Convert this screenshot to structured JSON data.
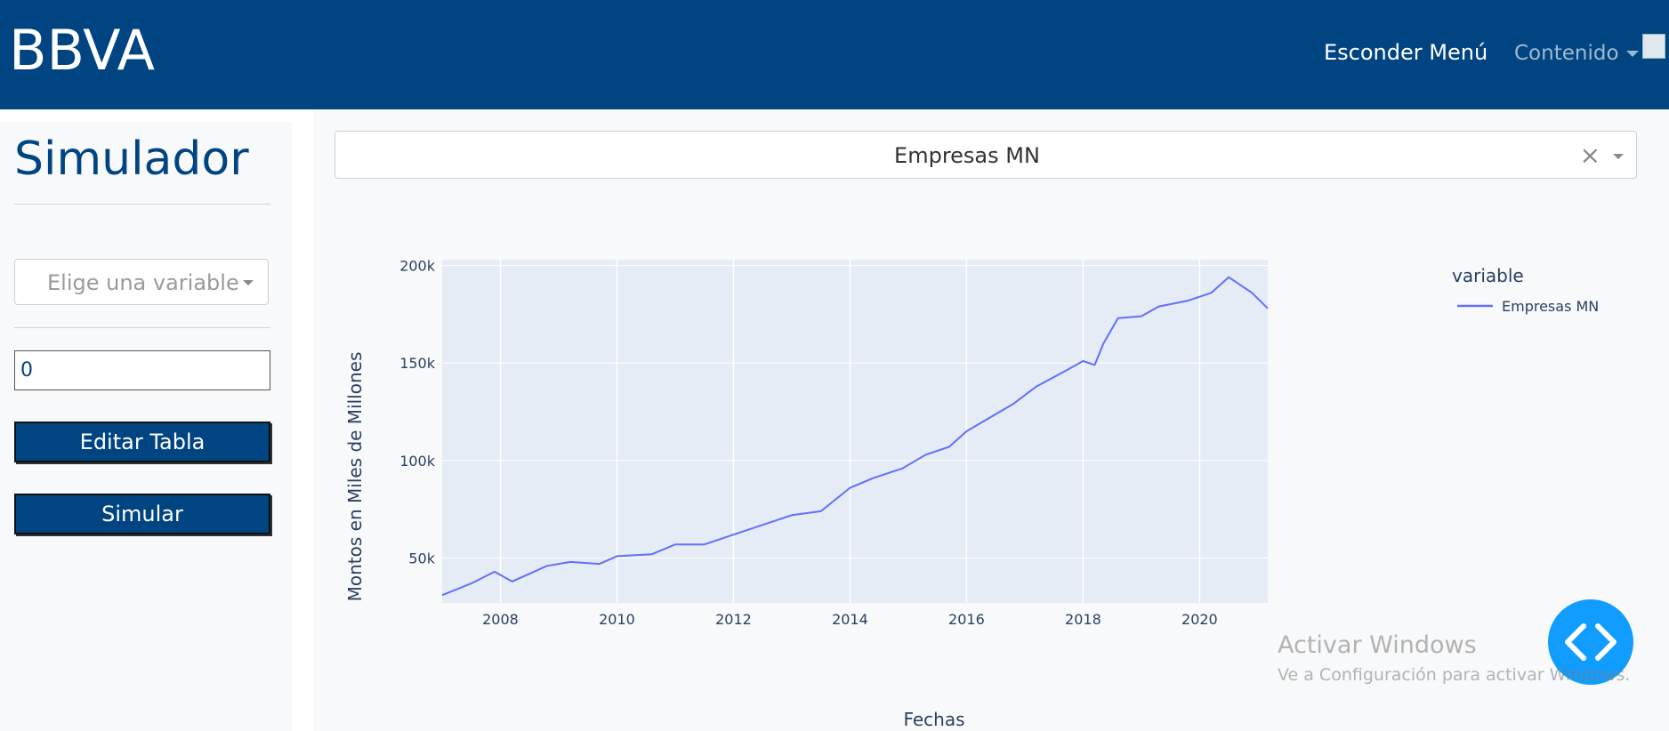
{
  "navbar": {
    "brand": "BBVA",
    "hide_menu_label": "Esconder Menú",
    "content_menu_label": "Contenido"
  },
  "sidebar": {
    "title": "Simulador",
    "variable_select": {
      "placeholder": "Elige una variable"
    },
    "number_input": {
      "value": "0"
    },
    "edit_table_label": "Editar Tabla",
    "simulate_label": "Simular"
  },
  "main": {
    "dropdown": {
      "value": "Empresas MN",
      "clear_glyph": "×"
    }
  },
  "chart_data": {
    "type": "line",
    "title": "",
    "xlabel": "Fechas",
    "ylabel": "Montos en Miles de Millones",
    "xlim": [
      2007.0,
      2021.17
    ],
    "ylim": [
      27000,
      203000
    ],
    "x_ticks": [
      2008,
      2010,
      2012,
      2014,
      2016,
      2018,
      2020
    ],
    "x_tick_labels": [
      "2008",
      "2010",
      "2012",
      "2014",
      "2016",
      "2018",
      "2020"
    ],
    "y_ticks": [
      50000,
      100000,
      150000,
      200000
    ],
    "y_tick_labels": [
      "50k",
      "100k",
      "150k",
      "200k"
    ],
    "grid": true,
    "legend": {
      "title": "variable",
      "placement": "right"
    },
    "series": [
      {
        "name": "Empresas MN",
        "color": "#636efa",
        "x": [
          2007.0,
          2007.5,
          2007.9,
          2008.2,
          2008.8,
          2009.2,
          2009.7,
          2010.0,
          2010.6,
          2011.0,
          2011.5,
          2012.0,
          2012.6,
          2013.0,
          2013.5,
          2014.0,
          2014.4,
          2014.9,
          2015.3,
          2015.7,
          2016.0,
          2016.4,
          2016.8,
          2017.2,
          2017.7,
          2018.0,
          2018.2,
          2018.35,
          2018.6,
          2019.0,
          2019.3,
          2019.8,
          2020.2,
          2020.5,
          2020.9,
          2021.17
        ],
        "values": [
          31000,
          37000,
          43000,
          38000,
          46000,
          48000,
          47000,
          51000,
          52000,
          57000,
          57000,
          62000,
          68000,
          72000,
          74000,
          86000,
          91000,
          96000,
          103000,
          107000,
          115000,
          122000,
          129000,
          138000,
          146000,
          151000,
          149000,
          160000,
          173000,
          174000,
          179000,
          182000,
          186000,
          194000,
          186000,
          178000
        ]
      }
    ]
  },
  "watermark": {
    "line1": "Activar Windows",
    "line2": "Ve a Configuración para activar Windows."
  }
}
